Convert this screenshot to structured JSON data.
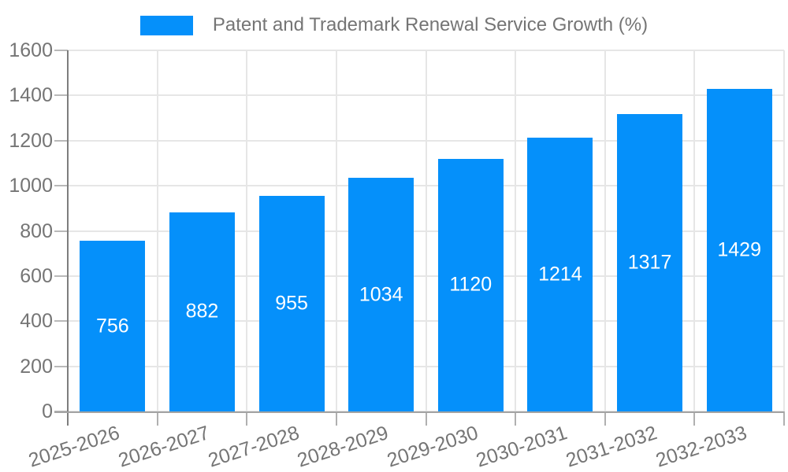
{
  "legend": {
    "label": "Patent and Trademark Renewal Service Growth (%)"
  },
  "chart_data": {
    "type": "bar",
    "title": "Patent and Trademark Renewal Service Growth (%)",
    "categories": [
      "2025-2026",
      "2026-2027",
      "2027-2028",
      "2028-2029",
      "2029-2030",
      "2030-2031",
      "2031-2032",
      "2032-2033"
    ],
    "values": [
      756,
      882,
      955,
      1034,
      1120,
      1214,
      1317,
      1429
    ],
    "series_name": "Patent and Trademark Renewal Service Growth (%)",
    "xlabel": "",
    "ylabel": "",
    "ylim": [
      0,
      1600
    ],
    "ytick_step": 200,
    "yticks": [
      0,
      200,
      400,
      600,
      800,
      1000,
      1200,
      1400,
      1600
    ],
    "grid": "on",
    "legend_position": "top",
    "bar_color": "#0590fa",
    "value_label_color": "#ffffff",
    "tick_label_color": "#757575",
    "gridline_color": "#e6e6e6"
  }
}
